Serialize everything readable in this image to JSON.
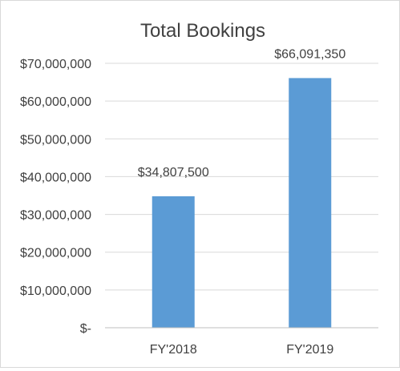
{
  "chart_data": {
    "type": "bar",
    "title": "Total Bookings",
    "xlabel": "",
    "ylabel": "",
    "categories": [
      "FY'2018",
      "FY'2019"
    ],
    "values": [
      34807500,
      66091350
    ],
    "data_labels": [
      "$34,807,500",
      "$66,091,350"
    ],
    "ylim": [
      0,
      70000000
    ],
    "y_ticks": [
      0,
      10000000,
      20000000,
      30000000,
      40000000,
      50000000,
      60000000,
      70000000
    ],
    "y_tick_labels": [
      "$-",
      "$10,000,000",
      "$20,000,000",
      "$30,000,000",
      "$40,000,000",
      "$50,000,000",
      "$60,000,000",
      "$70,000,000"
    ],
    "grid": true,
    "legend": "none",
    "colors": {
      "bar": "#5b9bd5",
      "grid": "#d9d9d9",
      "axis": "#bfbfbf",
      "text": "#404040"
    }
  }
}
